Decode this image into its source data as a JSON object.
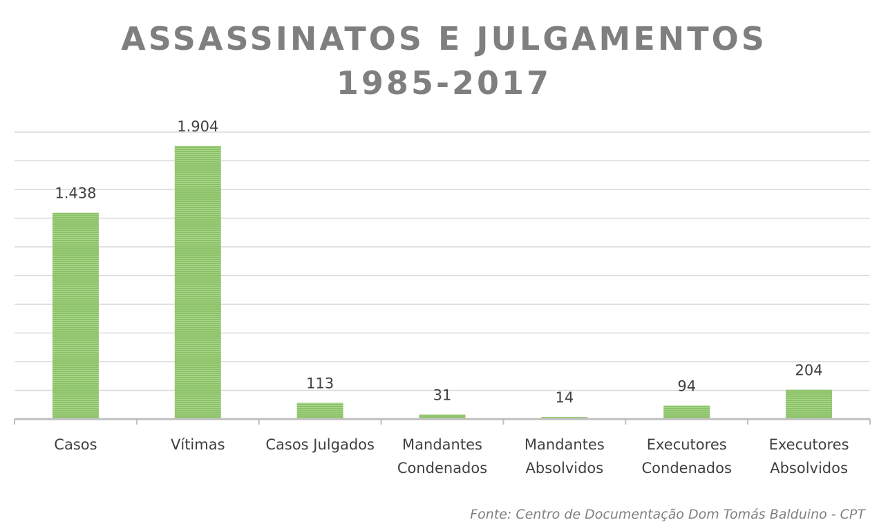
{
  "chart_data": {
    "type": "bar",
    "title_lines": [
      "ASSASSINATOS E JULGAMENTOS",
      "1985-2017"
    ],
    "categories": [
      [
        "Casos"
      ],
      [
        "Vítimas"
      ],
      [
        "Casos Julgados"
      ],
      [
        "Mandantes",
        "Condenados"
      ],
      [
        "Mandantes",
        "Absolvidos"
      ],
      [
        "Executores",
        "Condenados"
      ],
      [
        "Executores",
        "Absolvidos"
      ]
    ],
    "values": [
      1438,
      1904,
      113,
      31,
      14,
      94,
      204
    ],
    "value_labels": [
      "1.438",
      "1.904",
      "113",
      "31",
      "14",
      "94",
      "204"
    ],
    "ylim": [
      0,
      2000
    ],
    "gridline_step": 200,
    "grid": true,
    "bar_color": "#8cc168",
    "bar_stripe_color": "#a9d88a",
    "label_color": "#404040",
    "grid_color": "#d9d9d9",
    "axis_color": "#bfbfbf"
  },
  "source": "Fonte: Centro de Documentação Dom Tomás Balduino - CPT"
}
